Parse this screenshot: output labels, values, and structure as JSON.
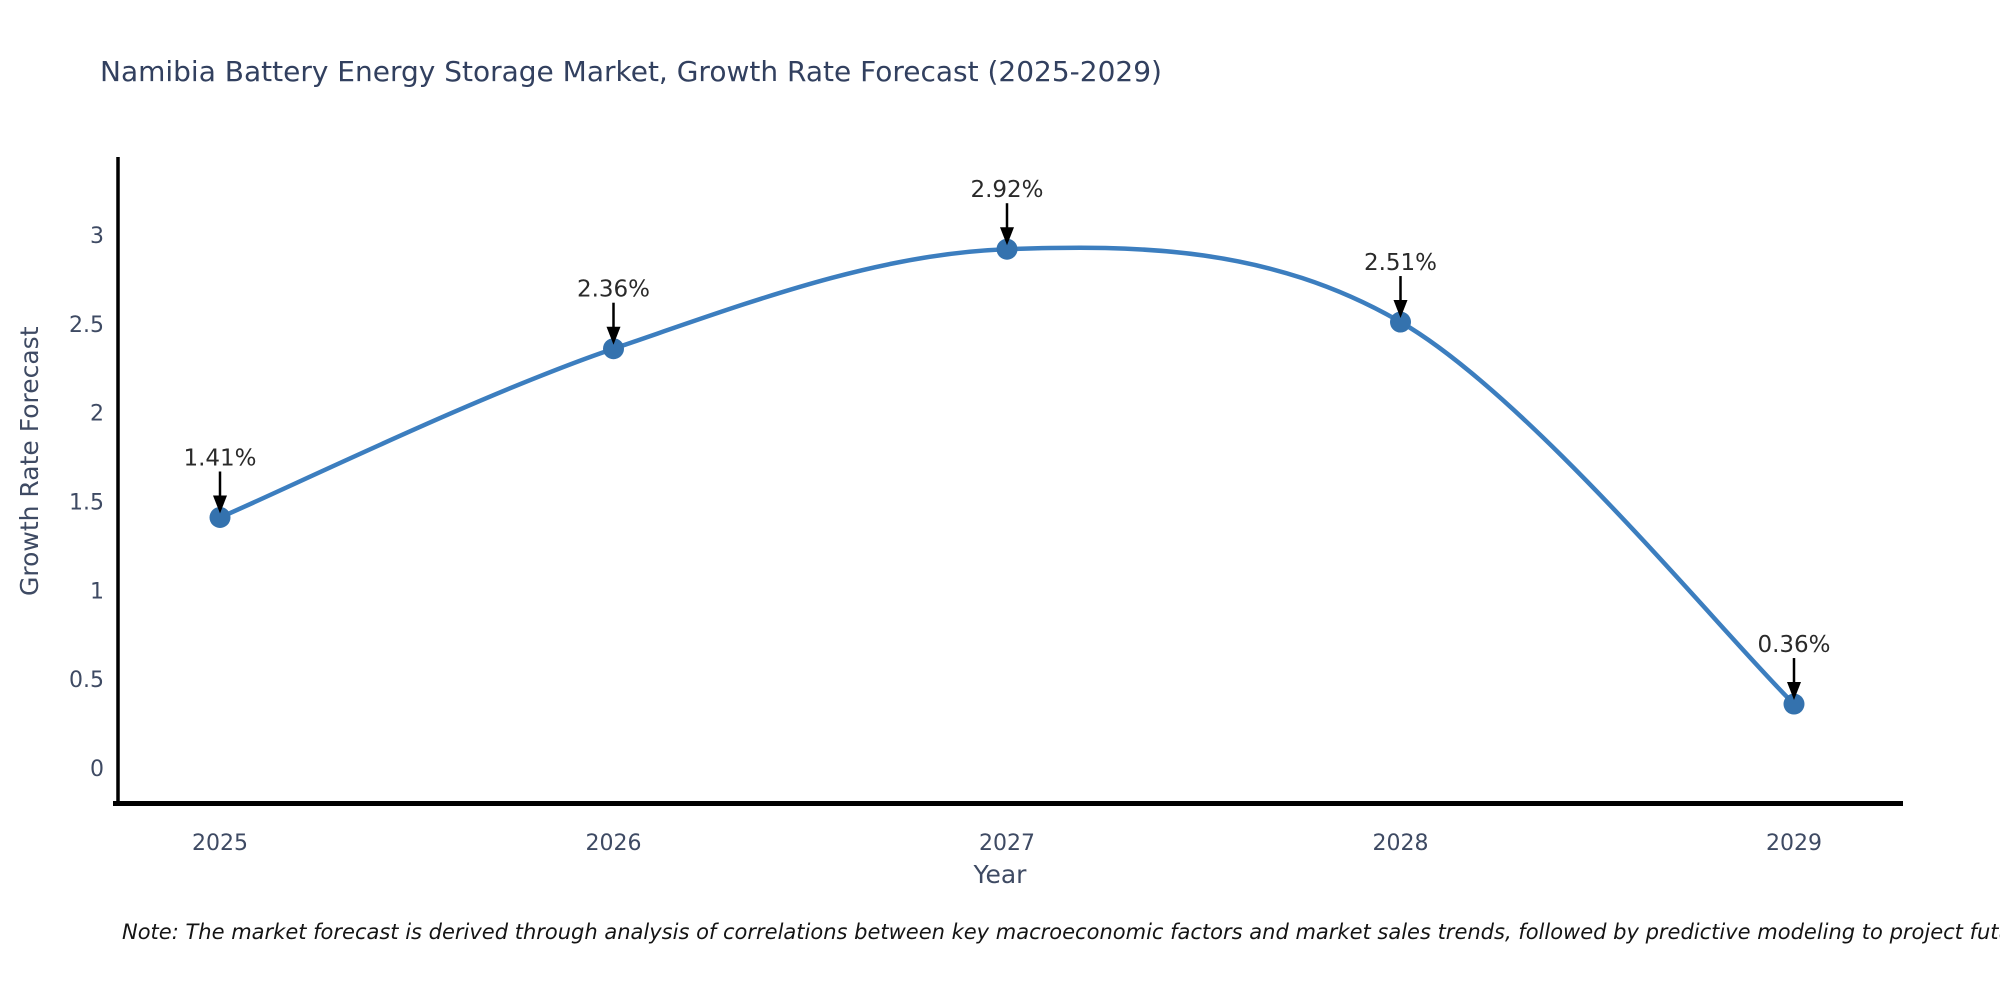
{
  "title": "Namibia Battery Energy Storage Market, Growth Rate Forecast (2025-2029)",
  "note": "Note: The market forecast is derived through analysis of correlations between key macroeconomic factors and market sales trends, followed by predictive modeling to project future sales",
  "chart_data": {
    "type": "line",
    "line_shape": "spline",
    "title": "Namibia Battery Energy Storage Market, Growth Rate Forecast (2025-2029)",
    "xlabel": "Year",
    "ylabel": "Growth Rate Forecast",
    "categories": [
      "2025",
      "2026",
      "2027",
      "2028",
      "2029"
    ],
    "x": [
      2025,
      2026,
      2027,
      2028,
      2029
    ],
    "series": [
      {
        "name": "Growth Rate Forecast",
        "values": [
          1.41,
          2.36,
          2.92,
          2.51,
          0.36
        ]
      }
    ],
    "point_labels": [
      "1.41%",
      "2.36%",
      "2.92%",
      "2.51%",
      "0.36%"
    ],
    "yticks": [
      0,
      0.5,
      1,
      1.5,
      2,
      2.5,
      3
    ],
    "ylim": [
      0,
      3.4
    ],
    "grid": false,
    "legend_position": "none",
    "annotation_style": "down-arrow",
    "colors": {
      "line": "#3c7ebf",
      "marker": "#3472ae",
      "axis": "#000000",
      "title_text": "#32405f",
      "tick_text": "#3e4a63",
      "annotation_text": "#2a2a2a",
      "arrow": "#000000",
      "note_text": "#141414",
      "background": "#ffffff"
    }
  }
}
